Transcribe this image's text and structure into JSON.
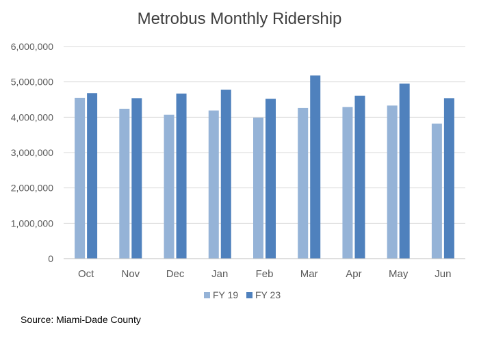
{
  "chart_data": {
    "type": "bar",
    "title": "Metrobus Monthly Ridership",
    "xlabel": "",
    "ylabel": "",
    "categories": [
      "Oct",
      "Nov",
      "Dec",
      "Jan",
      "Feb",
      "Mar",
      "Apr",
      "May",
      "Jun"
    ],
    "series": [
      {
        "name": "FY 19",
        "color": "#95b3d7",
        "values": [
          4550000,
          4240000,
          4070000,
          4190000,
          3990000,
          4260000,
          4290000,
          4330000,
          3820000
        ]
      },
      {
        "name": "FY 23",
        "color": "#4f81bd",
        "values": [
          4680000,
          4540000,
          4670000,
          4780000,
          4520000,
          5180000,
          4610000,
          4950000,
          4540000
        ]
      }
    ],
    "ylim": [
      0,
      6000000
    ],
    "yticks": [
      "0",
      "1,000,000",
      "2,000,000",
      "3,000,000",
      "4,000,000",
      "5,000,000",
      "6,000,000"
    ],
    "grid": true,
    "legend_position": "bottom"
  },
  "source": "Source: Miami-Dade County"
}
